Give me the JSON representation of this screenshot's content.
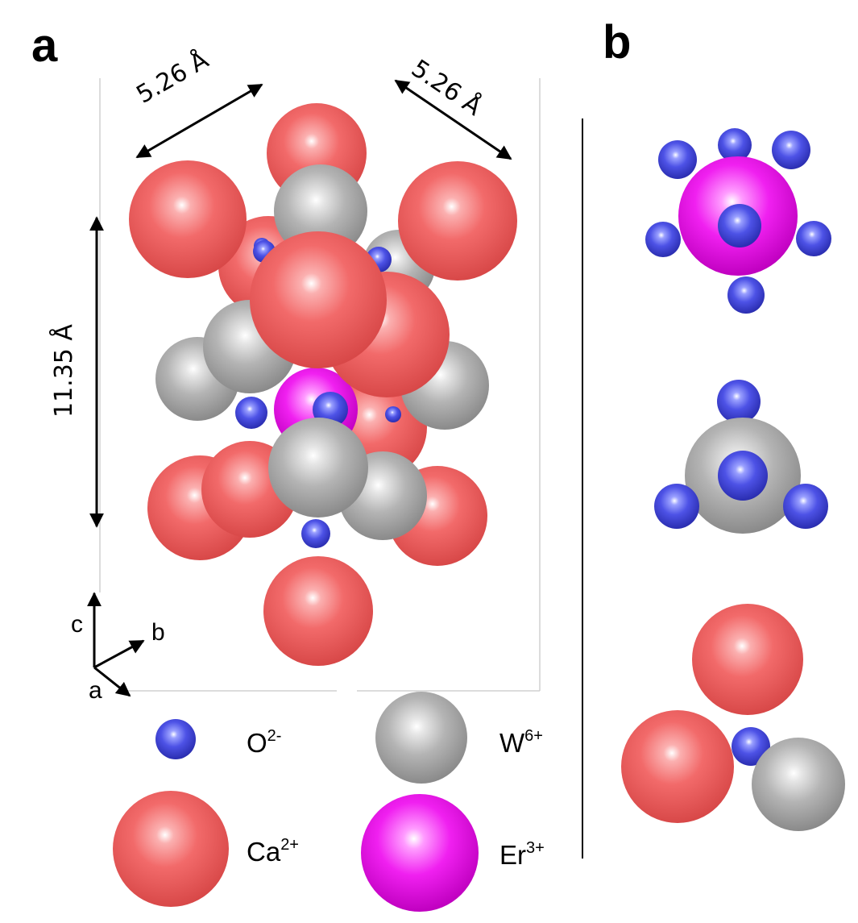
{
  "panels": {
    "a": "a",
    "b": "b"
  },
  "dimensions": {
    "a_edge": "5.26 Å",
    "b_edge": "5.26 Å",
    "c_edge": "11.35 Å"
  },
  "axes": {
    "c": "c",
    "b": "b",
    "a": "a"
  },
  "legend": {
    "oxygen": {
      "base": "O",
      "charge": "2-",
      "color": "#4a4ee0"
    },
    "tungsten": {
      "base": "W",
      "charge": "6+",
      "color": "#bfbfbf"
    },
    "calcium": {
      "base": "Ca",
      "charge": "2+",
      "color": "#f06464"
    },
    "erbium": {
      "base": "Er",
      "charge": "3+",
      "color": "#f010f0"
    }
  }
}
